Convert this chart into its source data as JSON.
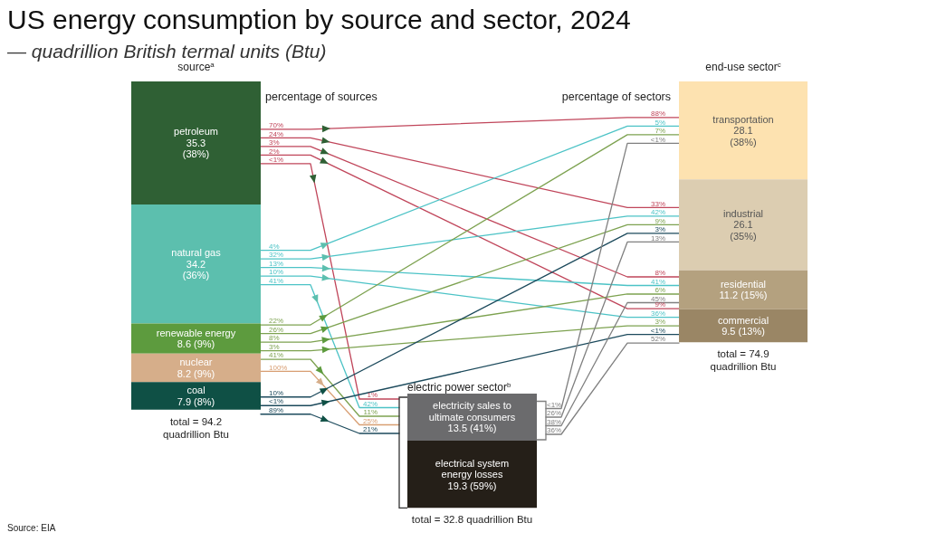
{
  "chart_data": {
    "type": "other",
    "title": "US energy consumption by source and sector, 2024",
    "subtitle": "— quadrillion British termal units (Btu)",
    "categories": [
      "petroleum",
      "natural gas",
      "renewable energy",
      "nuclear",
      "coal",
      "electric power sector$^{b}$",
      "electricity sales to ultimate consumers",
      "electrical system energy losses",
      "transportation",
      "industrial",
      "residential",
      "commercial"
    ],
    "series": [
      {
        "name": "source$^{a}$",
        "colors": [
          "#2f6034",
          "#5cbfae",
          "#5d9b3e",
          "#d6ae8a",
          "#0f5045",
          null,
          null,
          null,
          null,
          null,
          null,
          null
        ],
        "values": [
          35.3,
          34.2,
          8.6,
          8.2,
          7.9,
          null,
          null,
          null,
          null,
          null,
          null,
          null
        ],
        "value_labels": [
          "35.3 (38%)",
          "34.2 (36%)",
          "8.6 (9%)",
          "8.2 (9%)",
          "7.9 (8%)",
          null,
          null,
          null,
          null,
          null,
          null,
          null
        ]
      },
      {
        "colors": [
          null,
          null,
          null,
          null,
          null,
          null,
          "#6b6b6d",
          "#251f18",
          null,
          null,
          null,
          null
        ],
        "values": [
          null,
          null,
          null,
          null,
          null,
          null,
          13.5,
          19.3,
          null,
          null,
          null,
          null
        ],
        "value_labels": [
          null,
          null,
          null,
          null,
          null,
          null,
          "13.5 (41%)",
          "19.3 (59%)",
          null,
          null,
          null,
          null
        ]
      },
      {
        "name": "end-use sector$^{c}$",
        "colors": [
          null,
          null,
          null,
          null,
          null,
          null,
          null,
          null,
          "#fde2b0",
          "#dccdb1",
          "#b4a17f",
          "#9a8665"
        ],
        "values": [
          null,
          null,
          null,
          null,
          null,
          null,
          null,
          null,
          28.1,
          26.1,
          11.2,
          9.5
        ],
        "value_labels": [
          null,
          null,
          null,
          null,
          null,
          null,
          null,
          null,
          "28.1 (38%)",
          "26.1 (35%)",
          "11.2 (15%)",
          "9.5 (13%)"
        ]
      },
      {
        "type": "line",
        "color": "#c0455a",
        "values": [
          70,
          null,
          null,
          null,
          null,
          null,
          null,
          null,
          88,
          null,
          null,
          null
        ],
        "value_labels": [
          "70%",
          null,
          null,
          null,
          null,
          null,
          null,
          null,
          "88%",
          null,
          null,
          null
        ]
      },
      {
        "type": "line",
        "color": "#c0455a",
        "values": [
          24,
          null,
          null,
          null,
          null,
          null,
          null,
          null,
          null,
          33,
          null,
          null
        ],
        "value_labels": [
          "24%",
          null,
          null,
          null,
          null,
          null,
          null,
          null,
          null,
          "33%",
          null,
          null
        ]
      },
      {
        "type": "line",
        "color": "#c0455a",
        "values": [
          3,
          null,
          null,
          null,
          null,
          null,
          null,
          null,
          null,
          null,
          8,
          null
        ],
        "value_labels": [
          "3%",
          null,
          null,
          null,
          null,
          null,
          null,
          null,
          null,
          null,
          "8%",
          null
        ]
      },
      {
        "type": "line",
        "color": "#c0455a",
        "values": [
          2,
          null,
          null,
          null,
          null,
          null,
          null,
          null,
          null,
          null,
          null,
          9
        ],
        "value_labels": [
          "2%",
          null,
          null,
          null,
          null,
          null,
          null,
          null,
          null,
          null,
          null,
          "9%"
        ]
      },
      {
        "type": "line",
        "color": "#c0455a",
        "values": [
          null,
          null,
          null,
          null,
          null,
          1,
          null,
          null,
          null,
          null,
          null,
          null
        ],
        "value_labels": [
          "<1%",
          null,
          null,
          null,
          null,
          "1%",
          null,
          null,
          null,
          null,
          null,
          null
        ]
      },
      {
        "type": "line",
        "color": "#4cc3c6",
        "values": [
          null,
          4,
          null,
          null,
          null,
          null,
          null,
          null,
          5,
          null,
          null,
          null
        ],
        "value_labels": [
          null,
          "4%",
          null,
          null,
          null,
          null,
          null,
          null,
          "5%",
          null,
          null,
          null
        ]
      },
      {
        "type": "line",
        "color": "#4cc3c6",
        "values": [
          null,
          32,
          null,
          null,
          null,
          null,
          null,
          null,
          null,
          42,
          null,
          null
        ],
        "value_labels": [
          null,
          "32%",
          null,
          null,
          null,
          null,
          null,
          null,
          null,
          "42%",
          null,
          null
        ]
      },
      {
        "type": "line",
        "color": "#4cc3c6",
        "values": [
          null,
          13,
          null,
          null,
          null,
          null,
          null,
          null,
          null,
          null,
          41,
          null
        ],
        "value_labels": [
          null,
          "13%",
          null,
          null,
          null,
          null,
          null,
          null,
          null,
          null,
          "41%",
          null
        ]
      },
      {
        "type": "line",
        "color": "#4cc3c6",
        "values": [
          null,
          10,
          null,
          null,
          null,
          null,
          null,
          null,
          null,
          null,
          null,
          36
        ],
        "value_labels": [
          null,
          "10%",
          null,
          null,
          null,
          null,
          null,
          null,
          null,
          null,
          null,
          "36%"
        ]
      },
      {
        "type": "line",
        "color": "#4cc3c6",
        "values": [
          null,
          41,
          null,
          null,
          null,
          42,
          null,
          null,
          null,
          null,
          null,
          null
        ],
        "value_labels": [
          null,
          "41%",
          null,
          null,
          null,
          "42%",
          null,
          null,
          null,
          null,
          null,
          null
        ]
      },
      {
        "type": "line",
        "color": "#7da250",
        "values": [
          null,
          null,
          22,
          null,
          null,
          null,
          null,
          null,
          7,
          null,
          null,
          null
        ],
        "value_labels": [
          null,
          null,
          "22%",
          null,
          null,
          null,
          null,
          null,
          "7%",
          null,
          null,
          null
        ]
      },
      {
        "type": "line",
        "color": "#7da250",
        "values": [
          null,
          null,
          26,
          null,
          null,
          null,
          null,
          null,
          null,
          9,
          null,
          null
        ],
        "value_labels": [
          null,
          null,
          "26%",
          null,
          null,
          null,
          null,
          null,
          null,
          "9%",
          null,
          null
        ]
      },
      {
        "type": "line",
        "color": "#7da250",
        "values": [
          null,
          null,
          8,
          null,
          null,
          null,
          null,
          null,
          null,
          null,
          6,
          null
        ],
        "value_labels": [
          null,
          null,
          "8%",
          null,
          null,
          null,
          null,
          null,
          null,
          null,
          "6%",
          null
        ]
      },
      {
        "type": "line",
        "color": "#7da250",
        "values": [
          null,
          null,
          3,
          null,
          null,
          null,
          null,
          null,
          null,
          null,
          null,
          3
        ],
        "value_labels": [
          null,
          null,
          "3%",
          null,
          null,
          null,
          null,
          null,
          null,
          null,
          null,
          "3%"
        ]
      },
      {
        "type": "line",
        "color": "#7da250",
        "values": [
          null,
          null,
          41,
          null,
          null,
          11,
          null,
          null,
          null,
          null,
          null,
          null
        ],
        "value_labels": [
          null,
          null,
          "41%",
          null,
          null,
          "11%",
          null,
          null,
          null,
          null,
          null,
          null
        ]
      },
      {
        "type": "line",
        "color": "#d89e72",
        "values": [
          null,
          null,
          null,
          100,
          null,
          25,
          null,
          null,
          null,
          null,
          null,
          null
        ],
        "value_labels": [
          null,
          null,
          null,
          "100%",
          null,
          "25%",
          null,
          null,
          null,
          null,
          null,
          null
        ]
      },
      {
        "type": "line",
        "color": "#1c4a5c",
        "values": [
          null,
          null,
          null,
          null,
          10,
          null,
          null,
          null,
          null,
          3,
          null,
          null
        ],
        "value_labels": [
          null,
          null,
          null,
          null,
          "10%",
          null,
          null,
          null,
          null,
          "3%",
          null,
          null
        ]
      },
      {
        "type": "line",
        "color": "#1c4a5c",
        "values": [
          null,
          null,
          null,
          null,
          null,
          null,
          null,
          null,
          null,
          null,
          null,
          null
        ],
        "value_labels": [
          null,
          null,
          null,
          null,
          "<1%",
          null,
          null,
          null,
          null,
          null,
          null,
          "<1%"
        ]
      },
      {
        "type": "line",
        "color": "#1c4a5c",
        "values": [
          null,
          null,
          null,
          null,
          89,
          21,
          null,
          null,
          null,
          null,
          null,
          null
        ],
        "value_labels": [
          null,
          null,
          null,
          null,
          "89%",
          "21%",
          null,
          null,
          null,
          null,
          null,
          null
        ]
      },
      {
        "type": "line",
        "color": "#808080",
        "values": [
          null,
          null,
          null,
          null,
          null,
          null,
          null,
          null,
          null,
          null,
          null,
          null
        ],
        "value_labels": [
          null,
          null,
          null,
          null,
          null,
          null,
          "<1%",
          null,
          "<1%",
          null,
          null,
          null
        ]
      },
      {
        "type": "line",
        "color": "#808080",
        "values": [
          null,
          null,
          null,
          null,
          null,
          null,
          26,
          null,
          null,
          13,
          null,
          null
        ],
        "value_labels": [
          null,
          null,
          null,
          null,
          null,
          null,
          "26%",
          null,
          null,
          "13%",
          null,
          null
        ]
      },
      {
        "type": "line",
        "color": "#808080",
        "values": [
          null,
          null,
          null,
          null,
          null,
          null,
          38,
          null,
          null,
          null,
          45,
          null
        ],
        "value_labels": [
          null,
          null,
          null,
          null,
          null,
          null,
          "38%",
          null,
          null,
          null,
          "45%",
          null
        ]
      },
      {
        "type": "line",
        "color": "#808080",
        "values": [
          null,
          null,
          null,
          null,
          null,
          null,
          36,
          null,
          null,
          null,
          null,
          52
        ],
        "value_labels": [
          null,
          null,
          null,
          null,
          null,
          null,
          "36%",
          null,
          null,
          null,
          null,
          "52%"
        ]
      }
    ],
    "annotations": [
      "percentage of sources",
      "percentage of sectors",
      "Source: EIA",
      "total = 94.2 quadrillion Btu",
      "total = 32.8 quadrillion Btu",
      "total = 74.9 quadrillion Btu"
    ]
  }
}
